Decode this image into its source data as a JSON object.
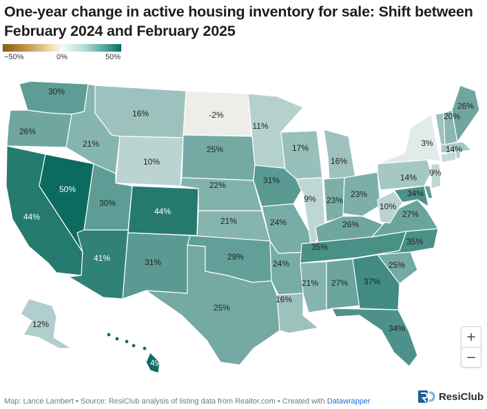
{
  "title": "One-year change in active housing inventory for sale: Shift between February 2024 and February 2025",
  "legend": {
    "min_label": "−50%",
    "mid_label": "0%",
    "max_label": "50%",
    "colors": {
      "min": "#8a5a17",
      "mid": "#f5f8f8",
      "max": "#0c6b5f"
    }
  },
  "zoom": {
    "in_label": "+",
    "out_label": "−"
  },
  "footer": {
    "credit": "Map: Lance Lambert • Source: ResiClub analysis of listing data from Realtor.com • Created with",
    "link": "Datawrapper"
  },
  "brand": {
    "name": "ResiClub",
    "icon": "resiclub-logo-icon"
  },
  "states": [
    {
      "id": "WA",
      "label": "30%",
      "value": 30
    },
    {
      "id": "OR",
      "label": "26%",
      "value": 26
    },
    {
      "id": "CA",
      "label": "44%",
      "value": 44
    },
    {
      "id": "NV",
      "label": "50%",
      "value": 50
    },
    {
      "id": "ID",
      "label": "21%",
      "value": 21
    },
    {
      "id": "MT",
      "label": "16%",
      "value": 16
    },
    {
      "id": "WY",
      "label": "10%",
      "value": 10
    },
    {
      "id": "UT",
      "label": "30%",
      "value": 30
    },
    {
      "id": "AZ",
      "label": "41%",
      "value": 41
    },
    {
      "id": "CO",
      "label": "44%",
      "value": 44
    },
    {
      "id": "NM",
      "label": "31%",
      "value": 31
    },
    {
      "id": "ND",
      "label": "-2%",
      "value": -2
    },
    {
      "id": "SD",
      "label": "25%",
      "value": 25
    },
    {
      "id": "NE",
      "label": "22%",
      "value": 22
    },
    {
      "id": "KS",
      "label": "21%",
      "value": 21
    },
    {
      "id": "OK",
      "label": "29%",
      "value": 29
    },
    {
      "id": "TX",
      "label": "25%",
      "value": 25
    },
    {
      "id": "MN",
      "label": "11%",
      "value": 11
    },
    {
      "id": "IA",
      "label": "31%",
      "value": 31
    },
    {
      "id": "MO",
      "label": "24%",
      "value": 24
    },
    {
      "id": "AR",
      "label": "24%",
      "value": 24
    },
    {
      "id": "LA",
      "label": "16%",
      "value": 16
    },
    {
      "id": "WI",
      "label": "17%",
      "value": 17
    },
    {
      "id": "IL",
      "label": "9%",
      "value": 9
    },
    {
      "id": "MI",
      "label": "16%",
      "value": 16
    },
    {
      "id": "IN",
      "label": "23%",
      "value": 23
    },
    {
      "id": "OH",
      "label": "23%",
      "value": 23
    },
    {
      "id": "KY",
      "label": "26%",
      "value": 26
    },
    {
      "id": "TN",
      "label": "35%",
      "value": 35
    },
    {
      "id": "MS",
      "label": "21%",
      "value": 21
    },
    {
      "id": "AL",
      "label": "27%",
      "value": 27
    },
    {
      "id": "GA",
      "label": "37%",
      "value": 37
    },
    {
      "id": "FL",
      "label": "34%",
      "value": 34
    },
    {
      "id": "SC",
      "label": "25%",
      "value": 25
    },
    {
      "id": "NC",
      "label": "35%",
      "value": 35
    },
    {
      "id": "VA",
      "label": "27%",
      "value": 27
    },
    {
      "id": "WV",
      "label": "10%",
      "value": 10
    },
    {
      "id": "PA",
      "label": "14%",
      "value": 14
    },
    {
      "id": "NY",
      "label": "3%",
      "value": 3
    },
    {
      "id": "MD",
      "label": "34%",
      "value": 34
    },
    {
      "id": "DE",
      "label": "",
      "value": 30
    },
    {
      "id": "NJ",
      "label": "9%",
      "value": 9
    },
    {
      "id": "CT",
      "label": "",
      "value": 8
    },
    {
      "id": "RI",
      "label": "",
      "value": 12
    },
    {
      "id": "MA",
      "label": "14%",
      "value": 14
    },
    {
      "id": "VT",
      "label": "",
      "value": 16
    },
    {
      "id": "NH",
      "label": "20%",
      "value": 20
    },
    {
      "id": "ME",
      "label": "26%",
      "value": 26
    },
    {
      "id": "AK",
      "label": "12%",
      "value": 12
    },
    {
      "id": "HI",
      "label": "49%",
      "value": 49
    }
  ]
}
